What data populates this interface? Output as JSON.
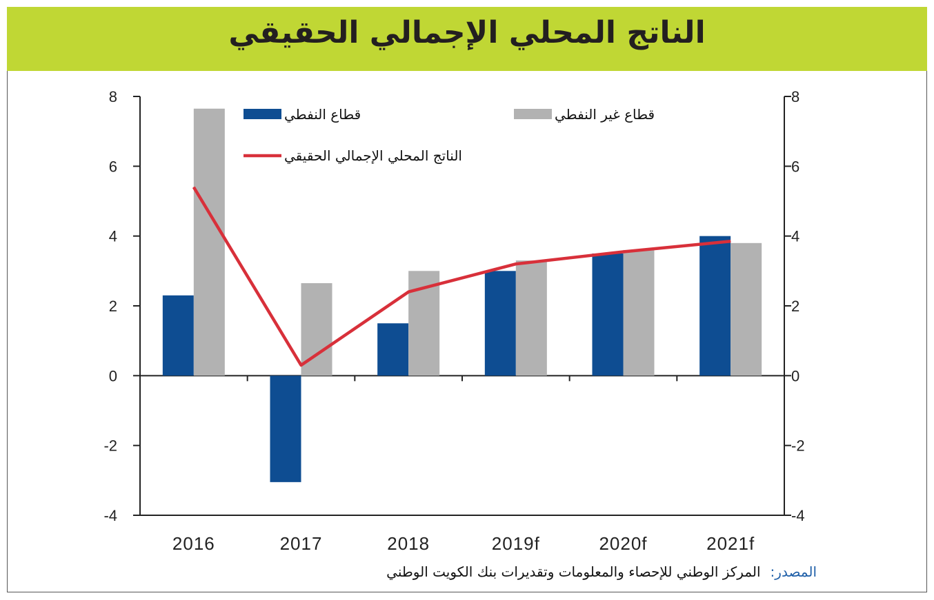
{
  "title": "الناتج المحلي الإجمالي الحقيقي",
  "colors": {
    "title_bar": "#c0d734",
    "oil": "#0e4d92",
    "non_oil": "#b2b2b2",
    "gdp_line": "#d8303a"
  },
  "source": {
    "label": "المصدر:",
    "text": "المركز الوطني للإحصاء والمعلومات وتقديرات بنك الكويت الوطني"
  },
  "chart_data": {
    "type": "bar",
    "categories": [
      "2016",
      "2017",
      "2018",
      "2019f",
      "2020f",
      "2021f"
    ],
    "series": [
      {
        "name": "قطاع النفطي",
        "type": "bar",
        "values": [
          2.3,
          -3.05,
          1.5,
          3.0,
          3.5,
          4.0
        ]
      },
      {
        "name": "قطاع غير النفطي",
        "type": "bar",
        "values": [
          7.65,
          2.65,
          3.0,
          3.3,
          3.6,
          3.8
        ]
      },
      {
        "name": "الناتج المحلي الإجمالي الحقيقي",
        "type": "line",
        "values": [
          5.4,
          0.3,
          2.4,
          3.2,
          3.55,
          3.85
        ]
      }
    ],
    "ylim": [
      -4,
      8
    ],
    "yticks": [
      -4,
      -2,
      0,
      2,
      4,
      6,
      8
    ],
    "grid": false,
    "legend": "top"
  }
}
